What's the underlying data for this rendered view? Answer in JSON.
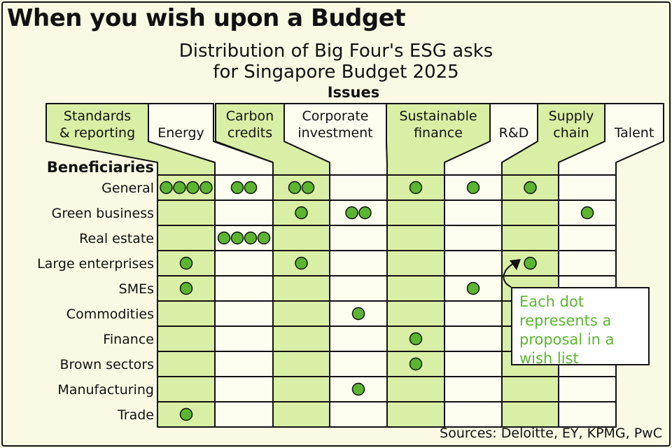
{
  "title": "When you wish upon a Budget",
  "subtitle_line1": "Distribution of Big Four's ESG asks",
  "subtitle_line2": "for Singapore Budget 2025",
  "source": "Sources: Deloitte, EY, KPMG, PwC",
  "annotation": "Each dot represents a proposal in a wish list",
  "colors": {
    "column_highlight": "#d9efa5",
    "dot": "#5cb531",
    "annotation_text": "#5cb531",
    "background": "#f9f9e4"
  },
  "chart_data": {
    "type": "table",
    "xlabel": "Issues",
    "ylabel": "Beneficiaries",
    "columns": [
      {
        "line1": "Standards",
        "line2": "& reporting",
        "highlight": true
      },
      {
        "line1": "",
        "line2": "Energy",
        "highlight": false
      },
      {
        "line1": "Carbon",
        "line2": "credits",
        "highlight": true
      },
      {
        "line1": "Corporate",
        "line2": "investment",
        "highlight": false
      },
      {
        "line1": "Sustainable",
        "line2": "finance",
        "highlight": true
      },
      {
        "line1": "",
        "line2": "R&D",
        "highlight": false
      },
      {
        "line1": "Supply",
        "line2": "chain",
        "highlight": true
      },
      {
        "line1": "",
        "line2": "Talent",
        "highlight": false
      }
    ],
    "rows": [
      "General",
      "Green business",
      "Real estate",
      "Large enterprises",
      "SMEs",
      "Commodities",
      "Finance",
      "Brown sectors",
      "Manufacturing",
      "Trade"
    ],
    "counts": [
      [
        4,
        2,
        2,
        0,
        1,
        1,
        1,
        0
      ],
      [
        0,
        0,
        1,
        2,
        0,
        0,
        0,
        1
      ],
      [
        0,
        4,
        0,
        0,
        0,
        0,
        0,
        0
      ],
      [
        1,
        0,
        1,
        0,
        0,
        0,
        1,
        0
      ],
      [
        1,
        0,
        0,
        0,
        0,
        1,
        0,
        0
      ],
      [
        0,
        0,
        0,
        1,
        0,
        0,
        0,
        0
      ],
      [
        0,
        0,
        0,
        0,
        1,
        0,
        0,
        0
      ],
      [
        0,
        0,
        0,
        0,
        1,
        0,
        0,
        0
      ],
      [
        0,
        0,
        0,
        1,
        0,
        0,
        0,
        0
      ],
      [
        1,
        0,
        0,
        0,
        0,
        0,
        0,
        0
      ]
    ]
  }
}
